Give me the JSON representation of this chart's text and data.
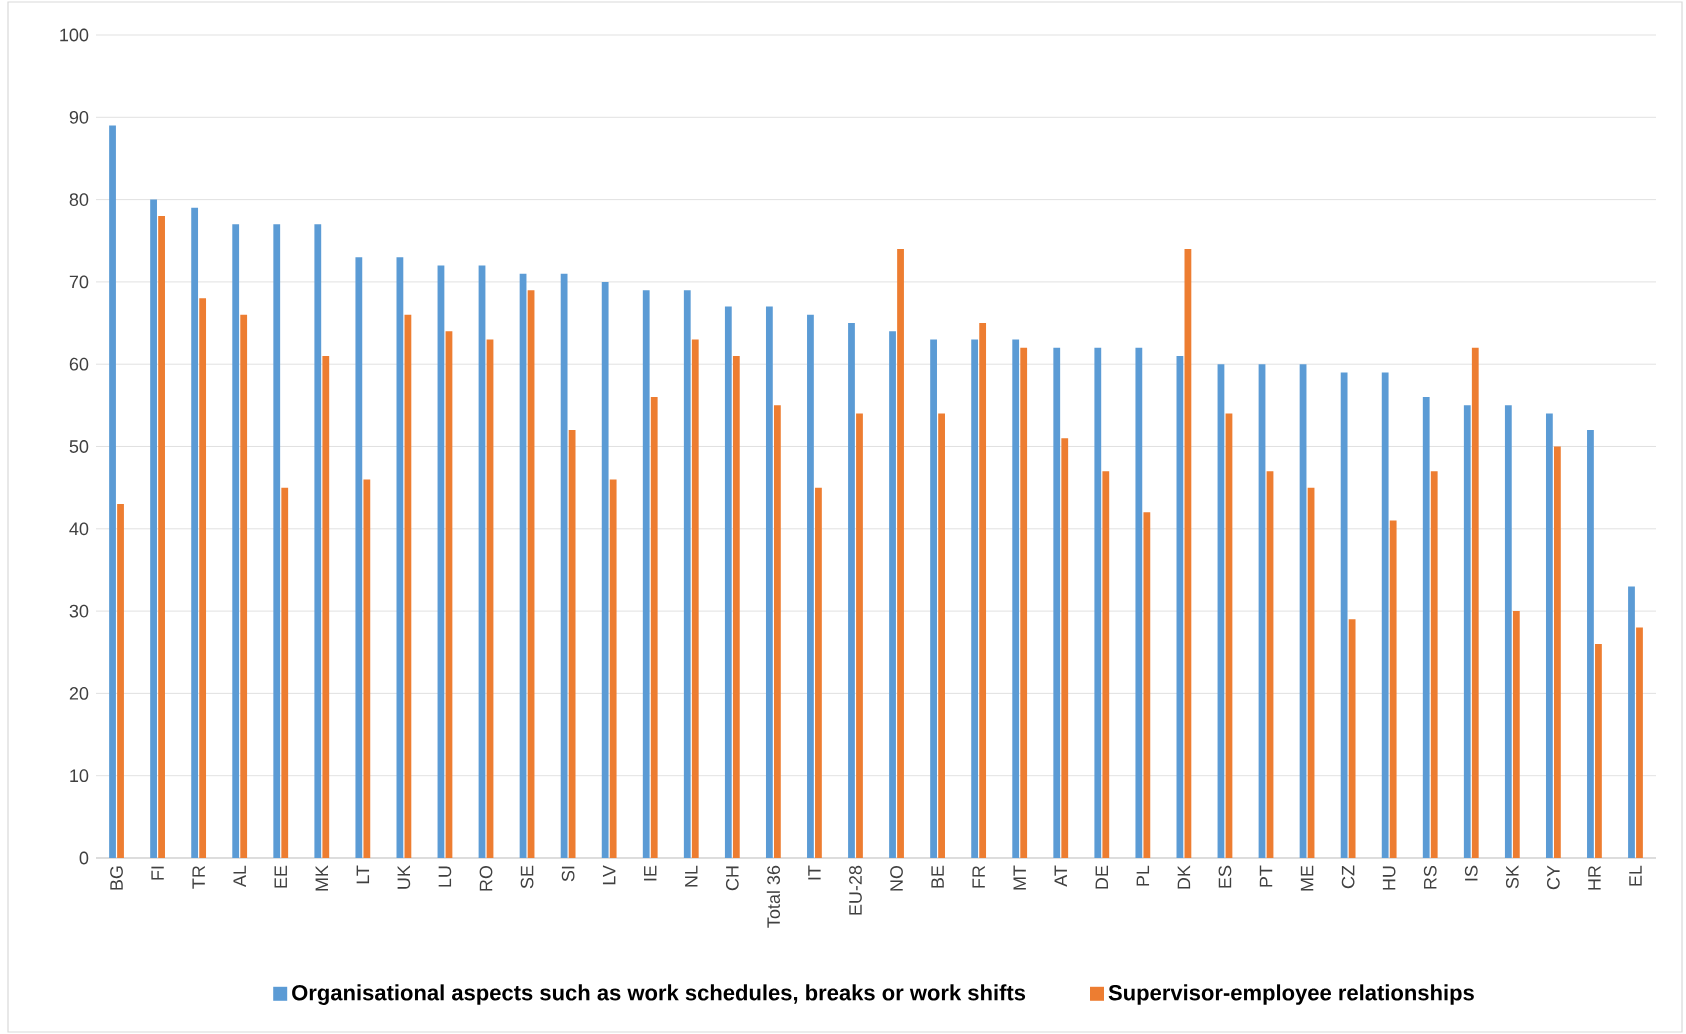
{
  "chart_data": {
    "type": "bar",
    "categories": [
      "BG",
      "FI",
      "TR",
      "AL",
      "EE",
      "MK",
      "LT",
      "UK",
      "LU",
      "RO",
      "SE",
      "SI",
      "LV",
      "IE",
      "NL",
      "CH",
      "Total 36",
      "IT",
      "EU-28",
      "NO",
      "BE",
      "FR",
      "MT",
      "AT",
      "DE",
      "PL",
      "DK",
      "ES",
      "PT",
      "ME",
      "CZ",
      "HU",
      "RS",
      "IS",
      "SK",
      "CY",
      "HR",
      "EL"
    ],
    "series": [
      {
        "name": "Organisational aspects such as work schedules, breaks or work shifts",
        "color": "#5b9bd5",
        "values": [
          89,
          80,
          79,
          77,
          77,
          77,
          73,
          73,
          72,
          72,
          71,
          71,
          70,
          69,
          69,
          67,
          67,
          66,
          65,
          64,
          63,
          63,
          63,
          62,
          62,
          62,
          61,
          60,
          60,
          60,
          59,
          59,
          56,
          55,
          55,
          54,
          52,
          33
        ]
      },
      {
        "name": "Supervisor-employee relationships",
        "color": "#ed7d31",
        "values": [
          43,
          78,
          68,
          66,
          45,
          61,
          46,
          66,
          64,
          63,
          69,
          52,
          46,
          56,
          63,
          61,
          55,
          45,
          54,
          74,
          54,
          65,
          62,
          51,
          47,
          42,
          74,
          54,
          47,
          45,
          29,
          41,
          47,
          62,
          30,
          50,
          26,
          28
        ]
      }
    ],
    "ylim": [
      0,
      100
    ],
    "yticks": [
      0,
      10,
      20,
      30,
      40,
      50,
      60,
      70,
      80,
      90,
      100
    ],
    "grid": "y",
    "legend": "bottom"
  }
}
